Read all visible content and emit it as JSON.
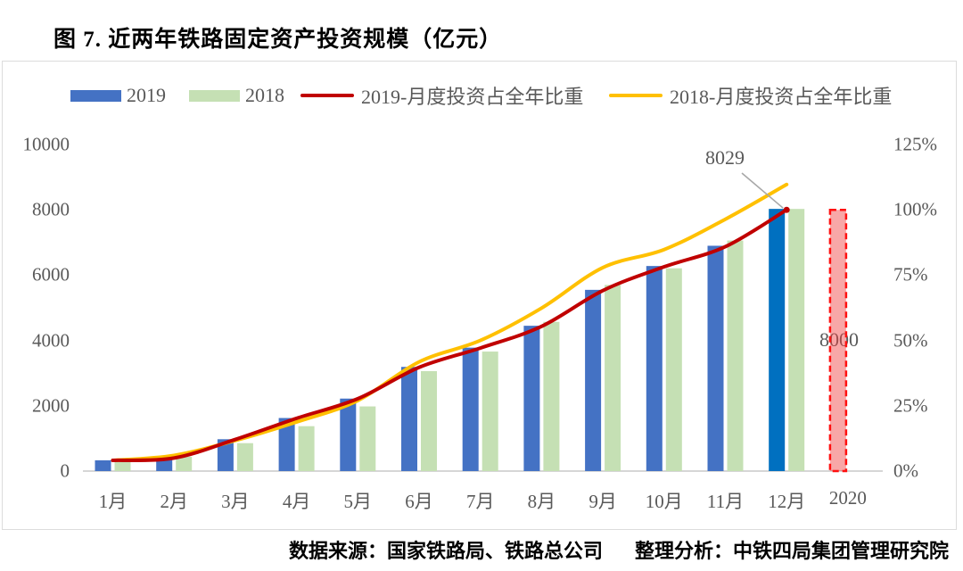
{
  "page": {
    "title": "图 7. 近两年铁路固定资产投资规模（亿元）",
    "source_left": "数据来源：国家铁路局、铁路总公司",
    "source_right": "整理分析：中铁四局集团管理研究院"
  },
  "legend": [
    {
      "label": "2019",
      "type": "box",
      "color": "#4472C4"
    },
    {
      "label": "2018",
      "type": "box",
      "color": "#C5E0B4"
    },
    {
      "label": "2019-月度投资占全年比重",
      "type": "line",
      "color": "#C00000"
    },
    {
      "label": "2018-月度投资占全年比重",
      "type": "line",
      "color": "#FFC000"
    }
  ],
  "chart_data": {
    "type": "bar+line combo, dual axis",
    "categories": [
      "1月",
      "2月",
      "3月",
      "4月",
      "5月",
      "6月",
      "7月",
      "8月",
      "9月",
      "10月",
      "11月",
      "12月",
      "2020"
    ],
    "series": [
      {
        "name": "2019",
        "type": "bar",
        "axis": "left",
        "color": "#4472C4",
        "highlight_index": 11,
        "highlight_color": "#0070C0",
        "values": [
          330,
          400,
          975,
          1625,
          2220,
          3190,
          3780,
          4450,
          5550,
          6280,
          6900,
          8029
        ]
      },
      {
        "name": "2018",
        "type": "bar",
        "axis": "left",
        "color": "#C5E0B4",
        "values": [
          300,
          440,
          855,
          1375,
          1980,
          3060,
          3660,
          4570,
          5700,
          6210,
          7060,
          8028
        ]
      },
      {
        "name": "2019-月度投资占全年比重",
        "type": "line",
        "axis": "right",
        "color": "#C00000",
        "values_pct": [
          4.1,
          5.0,
          12.1,
          20.2,
          27.7,
          39.7,
          47.1,
          55.4,
          69.1,
          78.2,
          85.9,
          100.0
        ]
      },
      {
        "name": "2018-月度投资占全年比重",
        "type": "line",
        "axis": "right",
        "color": "#FFC000",
        "values_pct": [
          4.1,
          6.0,
          11.7,
          18.8,
          27.0,
          41.8,
          50.0,
          62.4,
          77.9,
          84.8,
          96.4,
          109.7
        ]
      }
    ],
    "target_2020": {
      "category": "2020",
      "value": 8000,
      "label": "8000",
      "fill": "#F03C3C",
      "fill_opacity": 0.45,
      "stroke": "#FF1010",
      "dashed": true
    },
    "annotation_2019_total": {
      "text": "8029",
      "points_to": "12月 2019 bar top"
    },
    "left_axis": {
      "ticks": [
        "0",
        "2000",
        "4000",
        "6000",
        "8000",
        "10000"
      ],
      "min": 0,
      "max": 10000
    },
    "right_axis": {
      "ticks": [
        "0%",
        "25%",
        "50%",
        "75%",
        "100%",
        "125%"
      ],
      "min": 0,
      "max": 125
    },
    "axis_line_color": "#C8C8C8",
    "callout_color": "#A8A8A8",
    "grid": "off",
    "legend_position": "top"
  }
}
